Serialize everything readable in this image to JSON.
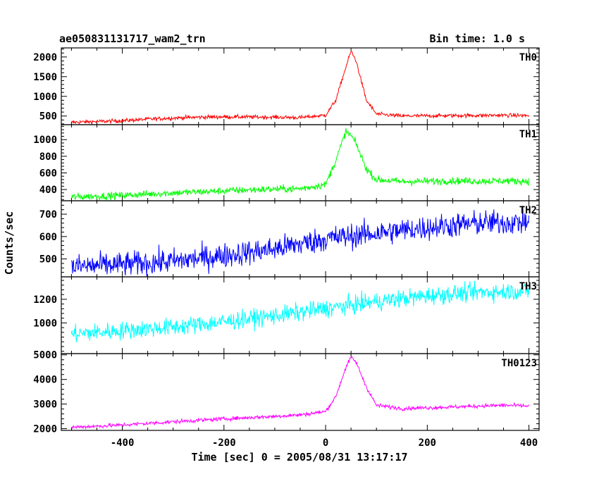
{
  "header": {
    "title": "ae050831131717_wam2_trn",
    "bin_time": "Bin time: 1.0 s"
  },
  "chart_data": {
    "type": "line",
    "title": "ae050831131717_wam2_trn",
    "subtitle": "Bin time: 1.0 s",
    "xlabel": "Time [sec] 0 = 2005/08/31 13:17:17",
    "ylabel": "Counts/sec",
    "xlim": [
      -520,
      420
    ],
    "x_ticks": [
      -400,
      -200,
      0,
      200,
      400
    ],
    "x_range_data": [
      -500,
      400
    ],
    "grid": false,
    "legend": "none",
    "series": [
      {
        "name": "TH0",
        "color": "#ff0000",
        "ylim": [
          280,
          2230
        ],
        "y_ticks": [
          500,
          1000,
          1500,
          2000
        ],
        "x": [
          -500,
          -450,
          -400,
          -350,
          -300,
          -250,
          -200,
          -150,
          -100,
          -50,
          0,
          20,
          40,
          50,
          60,
          80,
          100,
          150,
          200,
          250,
          300,
          350,
          400
        ],
        "values": [
          340,
          360,
          380,
          420,
          450,
          470,
          480,
          475,
          470,
          460,
          520,
          900,
          1750,
          2150,
          1900,
          900,
          550,
          500,
          505,
          510,
          515,
          520,
          510
        ],
        "noise": 25
      },
      {
        "name": "TH1",
        "color": "#00ff00",
        "ylim": [
          265,
          1180
        ],
        "y_ticks": [
          400,
          600,
          800,
          1000
        ],
        "x": [
          -500,
          -450,
          -400,
          -350,
          -300,
          -250,
          -200,
          -150,
          -100,
          -50,
          0,
          20,
          40,
          50,
          60,
          80,
          100,
          150,
          200,
          250,
          300,
          350,
          400
        ],
        "values": [
          310,
          320,
          330,
          345,
          360,
          370,
          385,
          395,
          405,
          410,
          460,
          750,
          1100,
          1050,
          950,
          650,
          520,
          495,
          500,
          505,
          500,
          505,
          500
        ],
        "noise": 22
      },
      {
        "name": "TH2",
        "color": "#0000ff",
        "ylim": [
          420,
          760
        ],
        "y_ticks": [
          500,
          600,
          700
        ],
        "x": [
          -500,
          -400,
          -300,
          -200,
          -100,
          0,
          100,
          200,
          300,
          400
        ],
        "values": [
          465,
          475,
          490,
          515,
          545,
          590,
          615,
          640,
          660,
          665
        ],
        "noise": 28
      },
      {
        "name": "TH3",
        "color": "#00ffff",
        "ylim": [
          740,
          1390
        ],
        "y_ticks": [
          1000,
          1200
        ],
        "x": [
          -500,
          -400,
          -300,
          -200,
          -100,
          0,
          100,
          200,
          300,
          400
        ],
        "values": [
          905,
          935,
          965,
          1010,
          1060,
          1120,
          1180,
          1230,
          1260,
          1270
        ],
        "noise": 38
      },
      {
        "name": "TH0123",
        "color": "#ff00ff",
        "ylim": [
          1930,
          5050
        ],
        "y_ticks": [
          2000,
          3000,
          4000,
          5000
        ],
        "x": [
          -500,
          -450,
          -400,
          -300,
          -200,
          -100,
          -50,
          0,
          20,
          40,
          50,
          60,
          80,
          100,
          150,
          200,
          250,
          300,
          350,
          400
        ],
        "values": [
          2060,
          2100,
          2150,
          2280,
          2400,
          2500,
          2560,
          2700,
          3300,
          4500,
          4900,
          4700,
          3700,
          2950,
          2820,
          2850,
          2880,
          2920,
          2950,
          2920
        ],
        "noise": 40
      }
    ]
  }
}
